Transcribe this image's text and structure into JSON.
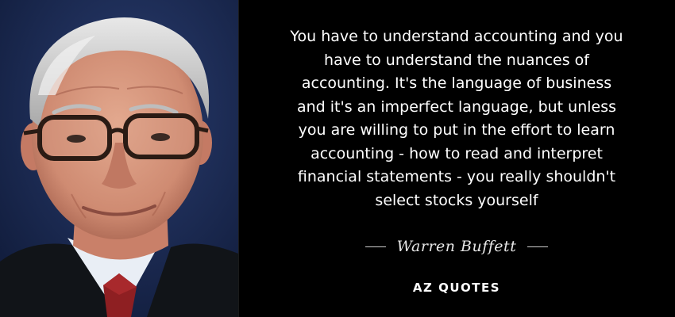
{
  "quote": {
    "lines": [
      "You have to understand accounting and you",
      "have to understand the nuances of",
      "accounting. It's the language of business",
      "and it's an imperfect language, but unless",
      "you are willing to put in the effort to learn",
      "accounting - how to read and interpret",
      "financial statements - you really shouldn't",
      "select stocks yourself"
    ]
  },
  "author": "Warren Buffett",
  "brand": "AZ QUOTES",
  "colors": {
    "background": "#000000",
    "text": "#ffffff",
    "portrait_backdrop": "#1b2a52"
  }
}
